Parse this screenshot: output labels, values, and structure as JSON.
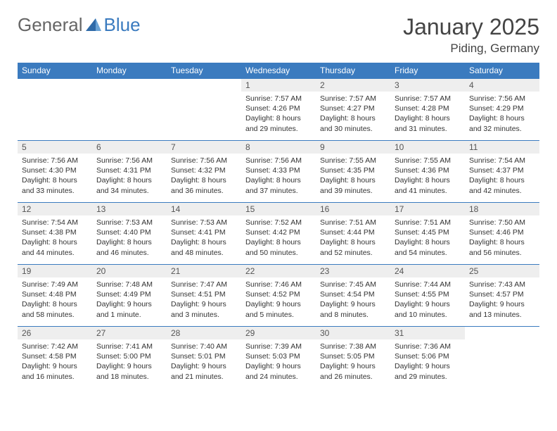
{
  "logo": {
    "text_general": "General",
    "text_blue": "Blue"
  },
  "title": "January 2025",
  "location": "Piding, Germany",
  "colors": {
    "header_bg": "#3b7bbf",
    "header_text": "#ffffff",
    "daynum_bg": "#eeeeee",
    "border": "#3b7bbf",
    "body_text": "#333333",
    "background": "#ffffff"
  },
  "weekdays": [
    "Sunday",
    "Monday",
    "Tuesday",
    "Wednesday",
    "Thursday",
    "Friday",
    "Saturday"
  ],
  "weeks": [
    [
      null,
      null,
      null,
      {
        "d": "1",
        "sr": "Sunrise: 7:57 AM",
        "ss": "Sunset: 4:26 PM",
        "dl1": "Daylight: 8 hours",
        "dl2": "and 29 minutes."
      },
      {
        "d": "2",
        "sr": "Sunrise: 7:57 AM",
        "ss": "Sunset: 4:27 PM",
        "dl1": "Daylight: 8 hours",
        "dl2": "and 30 minutes."
      },
      {
        "d": "3",
        "sr": "Sunrise: 7:57 AM",
        "ss": "Sunset: 4:28 PM",
        "dl1": "Daylight: 8 hours",
        "dl2": "and 31 minutes."
      },
      {
        "d": "4",
        "sr": "Sunrise: 7:56 AM",
        "ss": "Sunset: 4:29 PM",
        "dl1": "Daylight: 8 hours",
        "dl2": "and 32 minutes."
      }
    ],
    [
      {
        "d": "5",
        "sr": "Sunrise: 7:56 AM",
        "ss": "Sunset: 4:30 PM",
        "dl1": "Daylight: 8 hours",
        "dl2": "and 33 minutes."
      },
      {
        "d": "6",
        "sr": "Sunrise: 7:56 AM",
        "ss": "Sunset: 4:31 PM",
        "dl1": "Daylight: 8 hours",
        "dl2": "and 34 minutes."
      },
      {
        "d": "7",
        "sr": "Sunrise: 7:56 AM",
        "ss": "Sunset: 4:32 PM",
        "dl1": "Daylight: 8 hours",
        "dl2": "and 36 minutes."
      },
      {
        "d": "8",
        "sr": "Sunrise: 7:56 AM",
        "ss": "Sunset: 4:33 PM",
        "dl1": "Daylight: 8 hours",
        "dl2": "and 37 minutes."
      },
      {
        "d": "9",
        "sr": "Sunrise: 7:55 AM",
        "ss": "Sunset: 4:35 PM",
        "dl1": "Daylight: 8 hours",
        "dl2": "and 39 minutes."
      },
      {
        "d": "10",
        "sr": "Sunrise: 7:55 AM",
        "ss": "Sunset: 4:36 PM",
        "dl1": "Daylight: 8 hours",
        "dl2": "and 41 minutes."
      },
      {
        "d": "11",
        "sr": "Sunrise: 7:54 AM",
        "ss": "Sunset: 4:37 PM",
        "dl1": "Daylight: 8 hours",
        "dl2": "and 42 minutes."
      }
    ],
    [
      {
        "d": "12",
        "sr": "Sunrise: 7:54 AM",
        "ss": "Sunset: 4:38 PM",
        "dl1": "Daylight: 8 hours",
        "dl2": "and 44 minutes."
      },
      {
        "d": "13",
        "sr": "Sunrise: 7:53 AM",
        "ss": "Sunset: 4:40 PM",
        "dl1": "Daylight: 8 hours",
        "dl2": "and 46 minutes."
      },
      {
        "d": "14",
        "sr": "Sunrise: 7:53 AM",
        "ss": "Sunset: 4:41 PM",
        "dl1": "Daylight: 8 hours",
        "dl2": "and 48 minutes."
      },
      {
        "d": "15",
        "sr": "Sunrise: 7:52 AM",
        "ss": "Sunset: 4:42 PM",
        "dl1": "Daylight: 8 hours",
        "dl2": "and 50 minutes."
      },
      {
        "d": "16",
        "sr": "Sunrise: 7:51 AM",
        "ss": "Sunset: 4:44 PM",
        "dl1": "Daylight: 8 hours",
        "dl2": "and 52 minutes."
      },
      {
        "d": "17",
        "sr": "Sunrise: 7:51 AM",
        "ss": "Sunset: 4:45 PM",
        "dl1": "Daylight: 8 hours",
        "dl2": "and 54 minutes."
      },
      {
        "d": "18",
        "sr": "Sunrise: 7:50 AM",
        "ss": "Sunset: 4:46 PM",
        "dl1": "Daylight: 8 hours",
        "dl2": "and 56 minutes."
      }
    ],
    [
      {
        "d": "19",
        "sr": "Sunrise: 7:49 AM",
        "ss": "Sunset: 4:48 PM",
        "dl1": "Daylight: 8 hours",
        "dl2": "and 58 minutes."
      },
      {
        "d": "20",
        "sr": "Sunrise: 7:48 AM",
        "ss": "Sunset: 4:49 PM",
        "dl1": "Daylight: 9 hours",
        "dl2": "and 1 minute."
      },
      {
        "d": "21",
        "sr": "Sunrise: 7:47 AM",
        "ss": "Sunset: 4:51 PM",
        "dl1": "Daylight: 9 hours",
        "dl2": "and 3 minutes."
      },
      {
        "d": "22",
        "sr": "Sunrise: 7:46 AM",
        "ss": "Sunset: 4:52 PM",
        "dl1": "Daylight: 9 hours",
        "dl2": "and 5 minutes."
      },
      {
        "d": "23",
        "sr": "Sunrise: 7:45 AM",
        "ss": "Sunset: 4:54 PM",
        "dl1": "Daylight: 9 hours",
        "dl2": "and 8 minutes."
      },
      {
        "d": "24",
        "sr": "Sunrise: 7:44 AM",
        "ss": "Sunset: 4:55 PM",
        "dl1": "Daylight: 9 hours",
        "dl2": "and 10 minutes."
      },
      {
        "d": "25",
        "sr": "Sunrise: 7:43 AM",
        "ss": "Sunset: 4:57 PM",
        "dl1": "Daylight: 9 hours",
        "dl2": "and 13 minutes."
      }
    ],
    [
      {
        "d": "26",
        "sr": "Sunrise: 7:42 AM",
        "ss": "Sunset: 4:58 PM",
        "dl1": "Daylight: 9 hours",
        "dl2": "and 16 minutes."
      },
      {
        "d": "27",
        "sr": "Sunrise: 7:41 AM",
        "ss": "Sunset: 5:00 PM",
        "dl1": "Daylight: 9 hours",
        "dl2": "and 18 minutes."
      },
      {
        "d": "28",
        "sr": "Sunrise: 7:40 AM",
        "ss": "Sunset: 5:01 PM",
        "dl1": "Daylight: 9 hours",
        "dl2": "and 21 minutes."
      },
      {
        "d": "29",
        "sr": "Sunrise: 7:39 AM",
        "ss": "Sunset: 5:03 PM",
        "dl1": "Daylight: 9 hours",
        "dl2": "and 24 minutes."
      },
      {
        "d": "30",
        "sr": "Sunrise: 7:38 AM",
        "ss": "Sunset: 5:05 PM",
        "dl1": "Daylight: 9 hours",
        "dl2": "and 26 minutes."
      },
      {
        "d": "31",
        "sr": "Sunrise: 7:36 AM",
        "ss": "Sunset: 5:06 PM",
        "dl1": "Daylight: 9 hours",
        "dl2": "and 29 minutes."
      },
      null
    ]
  ]
}
